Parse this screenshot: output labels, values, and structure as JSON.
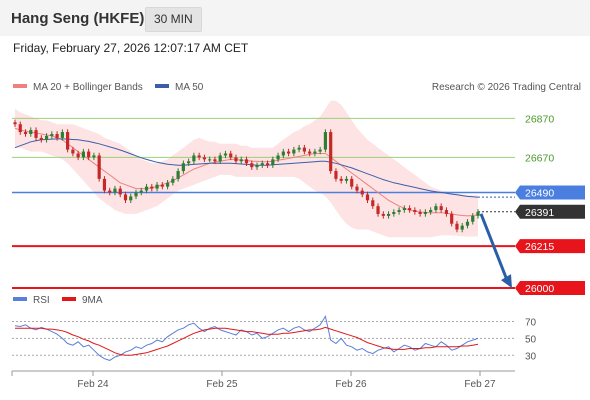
{
  "header": {
    "title": "Hang Seng (HKFE)",
    "timeframe": "30 MIN",
    "datetime": "Friday, February 27, 2026 12:07:17 AM CET"
  },
  "legend": {
    "ma20": "MA 20 + Bollinger Bands",
    "ma50": "MA 50",
    "credit": "Research © 2026 Trading Central",
    "rsi": "RSI",
    "rsi_ma": "9MA"
  },
  "colors": {
    "bollinger_fill": "#fde0e0",
    "ma20": "#f08080",
    "ma50": "#3a5fa8",
    "candle": "#2e7d32",
    "candle_bear": "#c62828",
    "resistance": "#9bd17a",
    "pivot": "#4a7fe0",
    "support": "#e8141c",
    "current": "#333333",
    "arrow": "#2a5fa8",
    "rsi": "#5a7fd8",
    "rsi_ma": "#e01818"
  },
  "chart_data": [
    {
      "type": "candlestick",
      "title": "Hang Seng (HKFE)",
      "x_ticks": [
        "Feb 24",
        "Feb 25",
        "Feb 26",
        "Feb 27"
      ],
      "ylim": [
        25990,
        26990
      ],
      "levels": [
        {
          "name": "resistance_2",
          "value": 26870,
          "label": "26870",
          "style": "resistance"
        },
        {
          "name": "resistance_1",
          "value": 26670,
          "label": "26670",
          "style": "resistance"
        },
        {
          "name": "pivot",
          "value": 26490,
          "label": "26490",
          "style": "pivot"
        },
        {
          "name": "last_price",
          "value": 26391,
          "label": "26391",
          "style": "current"
        },
        {
          "name": "support_1",
          "value": 26215,
          "label": "26215",
          "style": "support"
        },
        {
          "name": "support_2",
          "value": 26000,
          "label": "26000",
          "style": "support"
        }
      ],
      "close": [
        26840,
        26800,
        26790,
        26810,
        26770,
        26760,
        26780,
        26790,
        26770,
        26800,
        26710,
        26690,
        26670,
        26700,
        26670,
        26680,
        26560,
        26500,
        26490,
        26510,
        26480,
        26450,
        26470,
        26490,
        26500,
        26520,
        26510,
        26530,
        26520,
        26540,
        26560,
        26600,
        26640,
        26650,
        26680,
        26670,
        26660,
        26660,
        26650,
        26680,
        26690,
        26670,
        26650,
        26660,
        26640,
        26620,
        26630,
        26640,
        26630,
        26660,
        26680,
        26700,
        26690,
        26710,
        26720,
        26700,
        26690,
        26700,
        26710,
        26800,
        26600,
        26560,
        26550,
        26560,
        26520,
        26500,
        26480,
        26450,
        26420,
        26380,
        26370,
        26380,
        26390,
        26400,
        26410,
        26400,
        26390,
        26380,
        26390,
        26400,
        26420,
        26400,
        26380,
        26330,
        26300,
        26320,
        26340,
        26370,
        26391
      ],
      "ma20": [
        26820,
        26810,
        26805,
        26800,
        26795,
        26790,
        26785,
        26780,
        26770,
        26760,
        26740,
        26720,
        26700,
        26680,
        26660,
        26640,
        26620,
        26600,
        26580,
        26560,
        26540,
        26530,
        26520,
        26510,
        26510,
        26510,
        26515,
        26520,
        26530,
        26540,
        26550,
        26565,
        26580,
        26595,
        26610,
        26620,
        26630,
        26640,
        26645,
        26650,
        26655,
        26660,
        26660,
        26655,
        26655,
        26650,
        26650,
        26648,
        26648,
        26650,
        26655,
        26660,
        26665,
        26670,
        26675,
        26680,
        26685,
        26690,
        26690,
        26690,
        26670,
        26650,
        26630,
        26610,
        26590,
        26570,
        26550,
        26530,
        26510,
        26490,
        26470,
        26450,
        26435,
        26420,
        26410,
        26400,
        26395,
        26390,
        26388,
        26386,
        26386,
        26386,
        26384,
        26380,
        26375,
        26372,
        26370,
        26372,
        26375
      ],
      "ma50": [
        26720,
        26730,
        26740,
        26750,
        26755,
        26760,
        26762,
        26764,
        26765,
        26765,
        26764,
        26762,
        26760,
        26756,
        26752,
        26746,
        26740,
        26732,
        26724,
        26716,
        26708,
        26698,
        26688,
        26678,
        26668,
        26660,
        26652,
        26645,
        26640,
        26635,
        26632,
        26630,
        26630,
        26632,
        26634,
        26636,
        26638,
        26640,
        26640,
        26640,
        26640,
        26640,
        26638,
        26636,
        26634,
        26632,
        26630,
        26630,
        26630,
        26632,
        26634,
        26636,
        26638,
        26640,
        26642,
        26644,
        26646,
        26648,
        26650,
        26650,
        26645,
        26640,
        26632,
        26624,
        26616,
        26606,
        26596,
        26586,
        26576,
        26566,
        26556,
        26548,
        26540,
        26534,
        26528,
        26522,
        26516,
        26510,
        26504,
        26498,
        26494,
        26490,
        26486,
        26482,
        26478,
        26474,
        26470,
        26468,
        26466
      ],
      "bollinger_upper": [
        26920,
        26900,
        26890,
        26880,
        26870,
        26860,
        26860,
        26850,
        26840,
        26840,
        26840,
        26840,
        26830,
        26820,
        26810,
        26800,
        26790,
        26770,
        26760,
        26750,
        26740,
        26720,
        26700,
        26680,
        26660,
        26650,
        26640,
        26640,
        26650,
        26660,
        26680,
        26700,
        26720,
        26740,
        26760,
        26770,
        26760,
        26750,
        26750,
        26740,
        26740,
        26740,
        26740,
        26730,
        26730,
        26720,
        26720,
        26720,
        26720,
        26720,
        26740,
        26760,
        26780,
        26800,
        26810,
        26830,
        26840,
        26860,
        26880,
        26920,
        26960,
        26960,
        26940,
        26900,
        26860,
        26820,
        26790,
        26760,
        26740,
        26720,
        26700,
        26680,
        26660,
        26640,
        26620,
        26600,
        26580,
        26560,
        26540,
        26520,
        26510,
        26500,
        26495,
        26490,
        26485,
        26480,
        26478,
        26476,
        26475
      ],
      "bollinger_lower": [
        26720,
        26720,
        26710,
        26700,
        26700,
        26700,
        26690,
        26680,
        26670,
        26660,
        26640,
        26610,
        26580,
        26550,
        26520,
        26490,
        26460,
        26440,
        26420,
        26400,
        26390,
        26380,
        26380,
        26380,
        26390,
        26400,
        26410,
        26420,
        26440,
        26460,
        26480,
        26500,
        26510,
        26520,
        26530,
        26540,
        26550,
        26560,
        26570,
        26580,
        26580,
        26580,
        26570,
        26570,
        26570,
        26570,
        26570,
        26570,
        26570,
        26570,
        26570,
        26570,
        26570,
        26570,
        26560,
        26540,
        26520,
        26500,
        26490,
        26470,
        26440,
        26400,
        26360,
        26330,
        26310,
        26300,
        26300,
        26300,
        26290,
        26280,
        26270,
        26260,
        26260,
        26260,
        26260,
        26260,
        26260,
        26260,
        26260,
        26260,
        26265,
        26270,
        26270,
        26270,
        26268,
        26266,
        26264,
        26264,
        26265
      ]
    },
    {
      "type": "line",
      "title": "RSI",
      "x_ticks": [
        "Feb 24",
        "Feb 25",
        "Feb 26",
        "Feb 27"
      ],
      "y_ticks": [
        70,
        50,
        30
      ],
      "ylim": [
        15,
        80
      ],
      "series": [
        {
          "name": "RSI",
          "values": [
            65,
            64,
            66,
            62,
            60,
            63,
            61,
            58,
            55,
            50,
            44,
            42,
            46,
            40,
            42,
            36,
            30,
            26,
            24,
            28,
            30,
            34,
            36,
            40,
            38,
            42,
            44,
            48,
            46,
            52,
            56,
            60,
            62,
            66,
            68,
            62,
            58,
            62,
            64,
            60,
            58,
            56,
            54,
            60,
            58,
            54,
            56,
            50,
            52,
            56,
            60,
            62,
            58,
            62,
            64,
            60,
            58,
            62,
            66,
            76,
            48,
            44,
            50,
            42,
            40,
            36,
            38,
            34,
            32,
            36,
            38,
            40,
            34,
            38,
            42,
            40,
            36,
            38,
            44,
            42,
            40,
            46,
            42,
            36,
            38,
            42,
            46,
            48,
            50
          ]
        },
        {
          "name": "9MA",
          "values": [
            62,
            62,
            62,
            62,
            62,
            62,
            61,
            61,
            60,
            59,
            57,
            54,
            52,
            49,
            47,
            44,
            42,
            39,
            36,
            33,
            31,
            30,
            30,
            31,
            32,
            33,
            35,
            37,
            39,
            41,
            44,
            47,
            50,
            53,
            56,
            58,
            60,
            61,
            62,
            62,
            62,
            61,
            60,
            59,
            58,
            58,
            57,
            56,
            55,
            55,
            55,
            56,
            56,
            57,
            58,
            59,
            60,
            60,
            61,
            63,
            61,
            59,
            57,
            55,
            53,
            51,
            48,
            45,
            43,
            41,
            39,
            38,
            37,
            37,
            37,
            38,
            38,
            38,
            39,
            39,
            40,
            40,
            40,
            40,
            40,
            41,
            41,
            42,
            43
          ]
        }
      ]
    }
  ]
}
